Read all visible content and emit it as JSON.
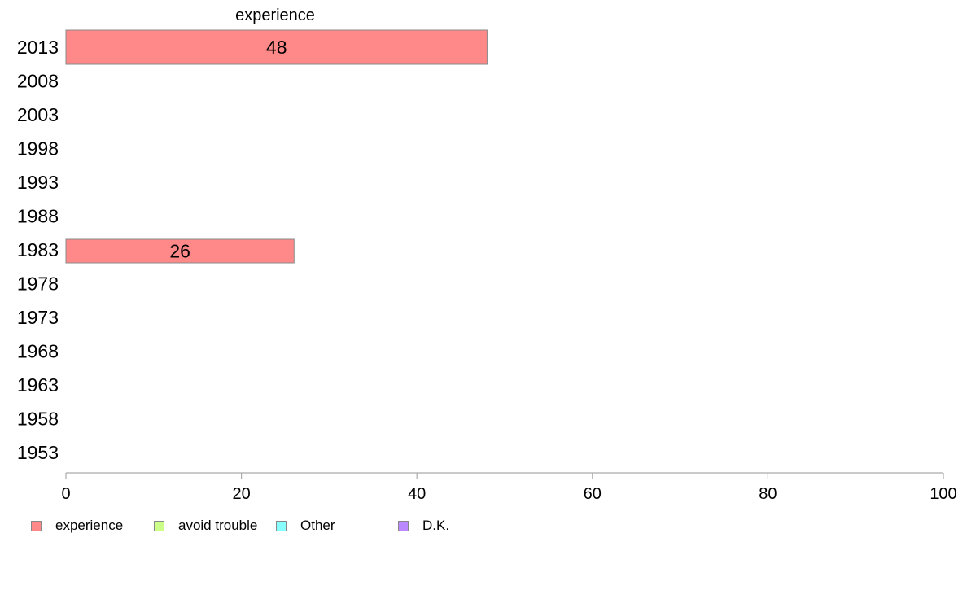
{
  "chart_data": {
    "type": "bar",
    "orientation": "horizontal",
    "title": "experience",
    "categories": [
      "2013",
      "2008",
      "2003",
      "1998",
      "1993",
      "1988",
      "1983",
      "1978",
      "1973",
      "1968",
      "1963",
      "1958",
      "1953"
    ],
    "series": [
      {
        "name": "experience",
        "color": "#ff8888",
        "values": [
          48,
          null,
          null,
          null,
          null,
          null,
          26,
          null,
          null,
          null,
          null,
          null,
          null
        ]
      },
      {
        "name": "avoid trouble",
        "color": "#ccff88",
        "values": [
          null,
          null,
          null,
          null,
          null,
          null,
          null,
          null,
          null,
          null,
          null,
          null,
          null
        ]
      },
      {
        "name": "Other",
        "color": "#88ffff",
        "values": [
          null,
          null,
          null,
          null,
          null,
          null,
          null,
          null,
          null,
          null,
          null,
          null,
          null
        ]
      },
      {
        "name": "D.K.",
        "color": "#bb88ff",
        "values": [
          null,
          null,
          null,
          null,
          null,
          null,
          null,
          null,
          null,
          null,
          null,
          null,
          null
        ]
      }
    ],
    "data_labels": [
      "48",
      "",
      "",
      "",
      "",
      "",
      "26",
      "",
      "",
      "",
      "",
      "",
      ""
    ],
    "xlim": [
      0,
      100
    ],
    "xticks": [
      0,
      20,
      40,
      60,
      80,
      100
    ],
    "grid": false,
    "legend_position": "bottom-left"
  }
}
